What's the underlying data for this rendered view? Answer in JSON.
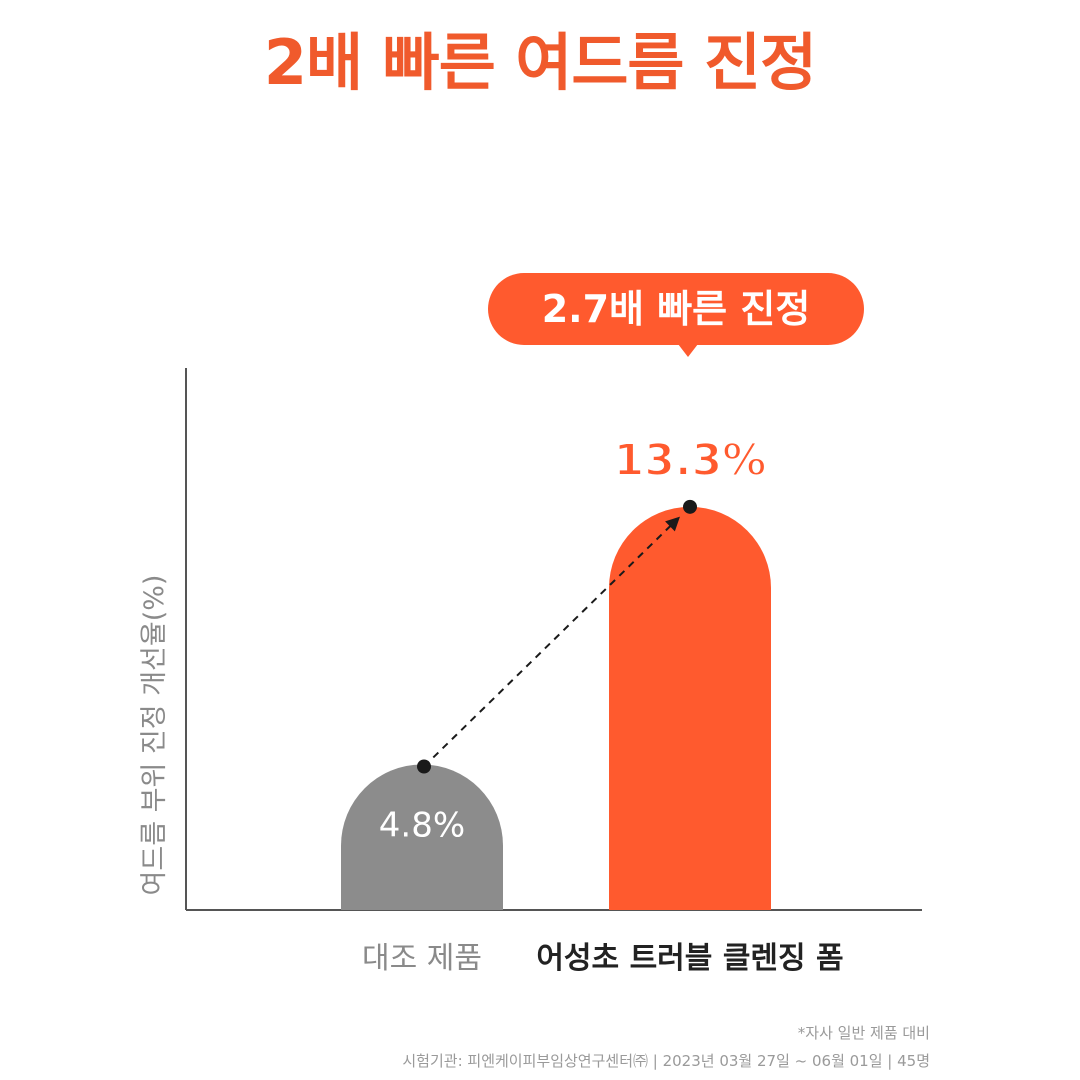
{
  "page": {
    "title": "2배 빠른 여드름 진정",
    "callout": "2.7배 빠른 진정",
    "footnote": "*자사 일반 제품 대비",
    "source": "시험기관: 피엔케이피부임상연구센터㈜ | 2023년 03월 27일 ~ 06월 01일 | 45명"
  },
  "colors": {
    "accent": "#ff5a2e",
    "control": "#8c8c8c",
    "axis": "#555555"
  },
  "chart_data": {
    "type": "bar",
    "categories": [
      "대조 제품",
      "어성초 트러블 클렌징 폼"
    ],
    "values": [
      4.8,
      13.3
    ],
    "value_labels": [
      "4.8%",
      "13.3%"
    ],
    "ylabel": "여드름 부위 진정 개선율(%)",
    "ylim": [
      0,
      16
    ],
    "grid": false,
    "annotation": "2.7배 빠른 진정"
  }
}
